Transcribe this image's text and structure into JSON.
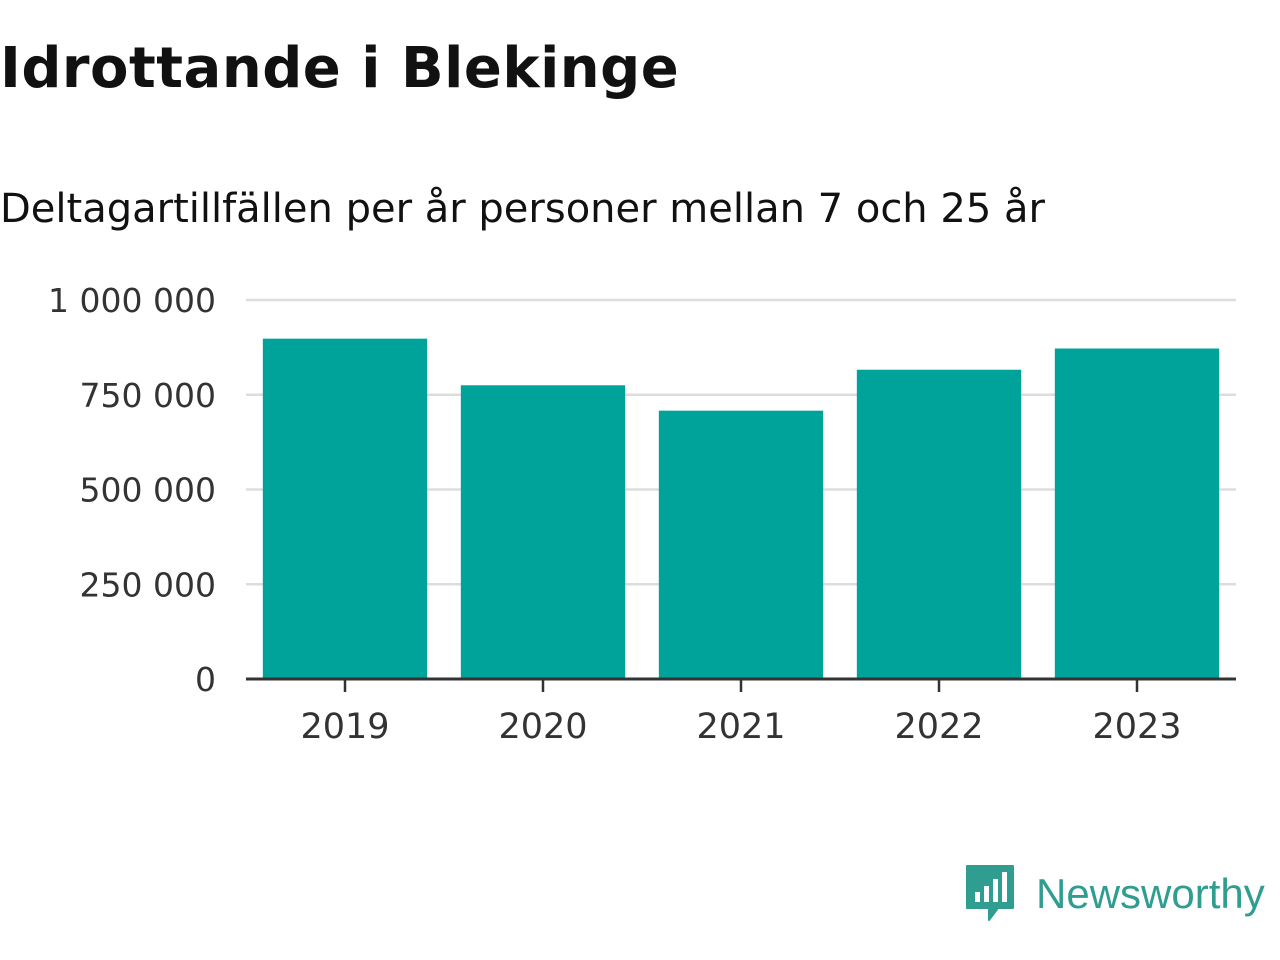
{
  "chart_data": {
    "type": "bar",
    "title": "Idrottande i Blekinge",
    "subtitle": "Deltagartillfällen per år personer mellan 7 och 25 år",
    "categories": [
      "2019",
      "2020",
      "2021",
      "2022",
      "2023"
    ],
    "values": [
      898000,
      775000,
      708000,
      816000,
      872000
    ],
    "ylim": [
      0,
      1000000
    ],
    "yticks": [
      0,
      250000,
      500000,
      750000,
      1000000
    ],
    "ytick_labels": [
      "0",
      "250 000",
      "500 000",
      "750 000",
      "1 000 000"
    ],
    "xlabel": "",
    "ylabel": "",
    "grid": true,
    "bar_color": "#00a39a"
  },
  "brand": {
    "name": "Newsworthy",
    "icon": "newsworthy-logo-icon",
    "color": "#2f9e90"
  }
}
